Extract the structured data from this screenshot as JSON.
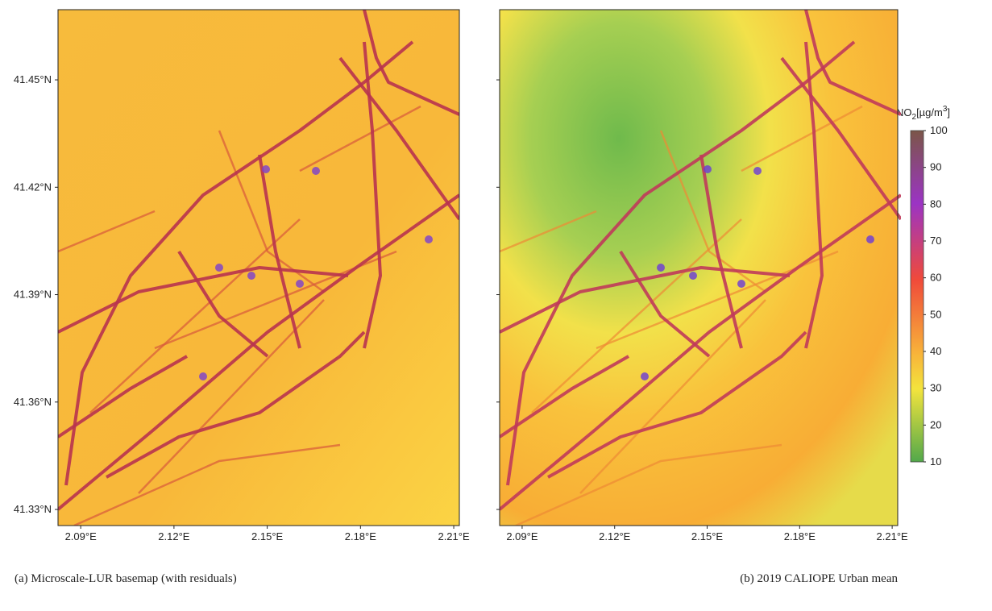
{
  "panels": [
    {
      "caption": "(a) Microscale-LUR basemap (with residuals)",
      "xlim": [
        2.0827,
        2.2118
      ],
      "ylim": [
        41.3255,
        41.4696
      ],
      "xticks": [
        {
          "value": 2.09,
          "label": "2.09°E"
        },
        {
          "value": 2.12,
          "label": "2.12°E"
        },
        {
          "value": 2.15,
          "label": "2.15°E"
        },
        {
          "value": 2.18,
          "label": "2.18°E"
        },
        {
          "value": 2.21,
          "label": "2.21°E"
        }
      ],
      "yticks": [
        {
          "value": 41.33,
          "label": "41.33°N"
        },
        {
          "value": 41.36,
          "label": "41.36°N"
        },
        {
          "value": 41.39,
          "label": "41.39°N"
        },
        {
          "value": 41.42,
          "label": "41.42°N"
        },
        {
          "value": 41.45,
          "label": "41.45°N"
        }
      ]
    },
    {
      "caption": "(b) 2019 CALIOPE Urban mean",
      "xlim": [
        2.0827,
        2.2118
      ],
      "ylim": [
        41.3255,
        41.4696
      ],
      "xticks": [
        {
          "value": 2.09,
          "label": "2.09°E"
        },
        {
          "value": 2.12,
          "label": "2.12°E"
        },
        {
          "value": 2.15,
          "label": "2.15°E"
        },
        {
          "value": 2.18,
          "label": "2.18°E"
        },
        {
          "value": 2.21,
          "label": "2.21°E"
        }
      ]
    }
  ],
  "colorbar": {
    "label_parts": [
      "NO",
      "2",
      "[µg/m",
      "3",
      "]"
    ],
    "lim": [
      10,
      100
    ],
    "ticks": [
      10,
      20,
      30,
      40,
      50,
      60,
      70,
      80,
      90,
      100
    ]
  }
}
